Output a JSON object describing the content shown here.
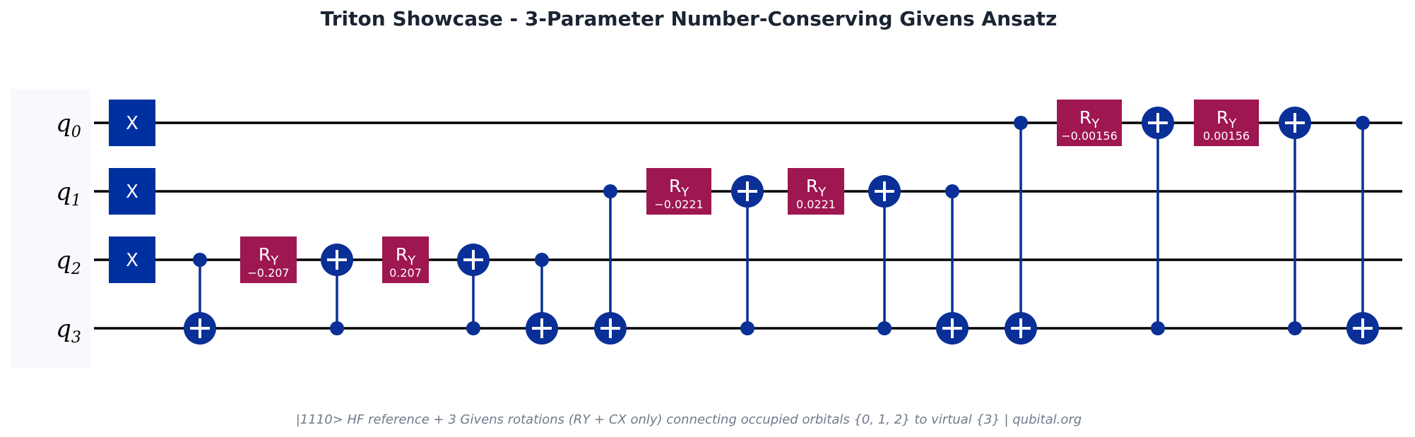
{
  "title": "Triton Showcase - 3-Parameter Number-Conserving Givens Ansatz",
  "caption": "|1110> HF reference + 3 Givens rotations (RY + CX only) connecting occupied orbitals {0, 1, 2} to virtual {3}  |  qubital.org",
  "colors": {
    "wire": "#000000",
    "x_gate": "#0030a0",
    "control": "#0a2f96",
    "ry_gate": "#9e1751",
    "label_bg": "#f8f9fc",
    "gate_text": "#ffffff"
  },
  "qubits": [
    {
      "id": "q0",
      "base": "q",
      "sub": "0"
    },
    {
      "id": "q1",
      "base": "q",
      "sub": "1"
    },
    {
      "id": "q2",
      "base": "q",
      "sub": "2"
    },
    {
      "id": "q3",
      "base": "q",
      "sub": "3"
    }
  ],
  "gates": [
    {
      "type": "X",
      "label": "X",
      "qubit": 0,
      "col": 0
    },
    {
      "type": "X",
      "label": "X",
      "qubit": 1,
      "col": 0
    },
    {
      "type": "X",
      "label": "X",
      "qubit": 2,
      "col": 0
    },
    {
      "type": "CX",
      "control": 2,
      "target": 3,
      "col": 1
    },
    {
      "type": "RY",
      "label": "R",
      "sub": "Y",
      "param": "−0.207",
      "qubit": 2,
      "col": 2
    },
    {
      "type": "CX",
      "control": 3,
      "target": 2,
      "col": 3
    },
    {
      "type": "RY",
      "label": "R",
      "sub": "Y",
      "param": "0.207",
      "qubit": 2,
      "col": 4
    },
    {
      "type": "CX",
      "control": 3,
      "target": 2,
      "col": 5
    },
    {
      "type": "CX",
      "control": 2,
      "target": 3,
      "col": 6
    },
    {
      "type": "CX",
      "control": 1,
      "target": 3,
      "col": 7
    },
    {
      "type": "RY",
      "label": "R",
      "sub": "Y",
      "param": "−0.0221",
      "qubit": 1,
      "col": 8
    },
    {
      "type": "CX",
      "control": 3,
      "target": 1,
      "col": 9
    },
    {
      "type": "RY",
      "label": "R",
      "sub": "Y",
      "param": "0.0221",
      "qubit": 1,
      "col": 10
    },
    {
      "type": "CX",
      "control": 3,
      "target": 1,
      "col": 11
    },
    {
      "type": "CX",
      "control": 1,
      "target": 3,
      "col": 12
    },
    {
      "type": "CX",
      "control": 0,
      "target": 3,
      "col": 13
    },
    {
      "type": "RY",
      "label": "R",
      "sub": "Y",
      "param": "−0.00156",
      "qubit": 0,
      "col": 14
    },
    {
      "type": "CX",
      "control": 3,
      "target": 0,
      "col": 15
    },
    {
      "type": "RY",
      "label": "R",
      "sub": "Y",
      "param": "0.00156",
      "qubit": 0,
      "col": 16
    },
    {
      "type": "CX",
      "control": 3,
      "target": 0,
      "col": 17
    },
    {
      "type": "CX",
      "control": 0,
      "target": 3,
      "col": 18
    }
  ]
}
